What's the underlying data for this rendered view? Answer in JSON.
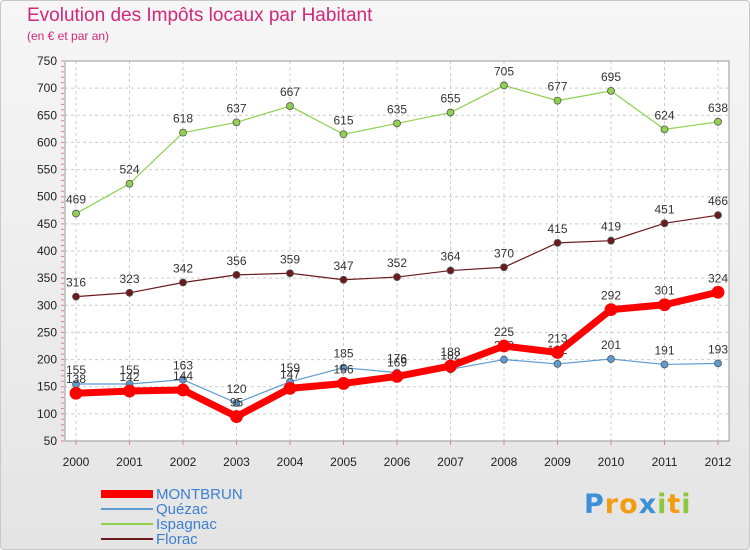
{
  "chart_data": {
    "type": "line",
    "title": "Evolution des Impôts locaux par Habitant",
    "subtitle": "(en € et par an)",
    "x": [
      "2000",
      "2001",
      "2002",
      "2003",
      "2004",
      "2005",
      "2006",
      "2007",
      "2008",
      "2009",
      "2010",
      "2011",
      "2012"
    ],
    "ylim": [
      50,
      750
    ],
    "yticks": [
      50,
      100,
      150,
      200,
      250,
      300,
      350,
      400,
      450,
      500,
      550,
      600,
      650,
      700,
      750
    ],
    "grid": true,
    "legend_position": "bottom-left",
    "series": [
      {
        "name": "Florac",
        "color": "#6b1a1e",
        "values": [
          316,
          323,
          342,
          356,
          359,
          347,
          352,
          364,
          370,
          415,
          419,
          451,
          466
        ]
      },
      {
        "name": "Ispagnac",
        "color": "#8fd14f",
        "values": [
          469,
          524,
          618,
          637,
          667,
          615,
          635,
          655,
          705,
          677,
          695,
          624,
          638
        ]
      },
      {
        "name": "Quézac",
        "color": "#5f9bd0",
        "values": [
          155,
          155,
          163,
          120,
          159,
          185,
          176,
          182,
          200,
          192,
          201,
          191,
          193
        ]
      },
      {
        "name": "MONTBRUN",
        "color": "#ff0000",
        "values": [
          138,
          142,
          144,
          95,
          147,
          156,
          169,
          188,
          225,
          213,
          292,
          301,
          324
        ]
      }
    ],
    "legend_order": [
      "MONTBRUN",
      "Quézac",
      "Ispagnac",
      "Florac"
    ]
  },
  "brand": {
    "name": "Proxiti",
    "letters": [
      "P",
      "r",
      "o",
      "x",
      "i",
      "t",
      "i"
    ],
    "letter_colors": [
      "#3d8fd6",
      "#f39c12",
      "#f39c12",
      "#3d8fd6",
      "#8dc63f",
      "#f39c12",
      "#8dc63f"
    ]
  }
}
